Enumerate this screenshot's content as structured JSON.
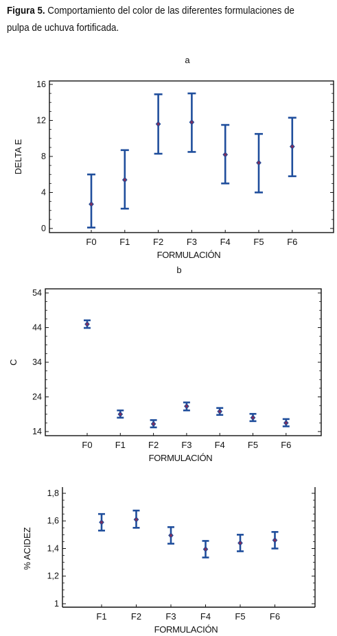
{
  "caption": {
    "label": "Figura 5.",
    "text": "Comportamiento del color de las diferentes formulaciones de pulpa de uchuva fortificada."
  },
  "colors": {
    "series": "#1f4e9c",
    "marker": "#7a2f5f",
    "frame": "#111111"
  },
  "chart_data": [
    {
      "type": "scatter",
      "panel_label": "a",
      "xlabel": "FORMULACIÓN",
      "ylabel": "DELTA E",
      "categories": [
        "F0",
        "F1",
        "F2",
        "F3",
        "F4",
        "F5",
        "F6"
      ],
      "values": [
        2.7,
        5.4,
        11.6,
        11.8,
        8.2,
        7.3,
        9.1
      ],
      "lower": [
        0.1,
        2.2,
        8.3,
        8.5,
        5.0,
        4.0,
        5.8
      ],
      "upper": [
        6.0,
        8.7,
        14.9,
        15.0,
        11.5,
        10.5,
        12.3
      ],
      "ylim": [
        0,
        16
      ],
      "yticks": [
        "0",
        "4",
        "8",
        "12",
        "16"
      ],
      "ytick_values": [
        0,
        4,
        8,
        12,
        16
      ],
      "grid": false
    },
    {
      "type": "scatter",
      "panel_label": "b",
      "xlabel": "FORMULACIÓN",
      "ylabel": "C",
      "categories": [
        "F0",
        "F1",
        "F2",
        "F3",
        "F4",
        "F5",
        "F6"
      ],
      "values": [
        45.0,
        19.0,
        16.2,
        21.3,
        19.8,
        18.0,
        16.5
      ],
      "lower": [
        43.9,
        18.0,
        15.2,
        20.1,
        18.8,
        17.0,
        15.5
      ],
      "upper": [
        46.1,
        20.1,
        17.3,
        22.4,
        20.8,
        19.1,
        17.6
      ],
      "ylim": [
        14,
        54
      ],
      "yticks": [
        "14",
        "24",
        "34",
        "44",
        "54"
      ],
      "ytick_values": [
        14,
        24,
        34,
        44,
        54
      ],
      "grid": false
    },
    {
      "type": "scatter",
      "xlabel": "FORMULACIÓN",
      "ylabel": "% ACIDEZ",
      "categories": [
        "F1",
        "F2",
        "F3",
        "F4",
        "F5",
        "F6"
      ],
      "values": [
        1.59,
        1.61,
        1.495,
        1.395,
        1.44,
        1.46
      ],
      "lower": [
        1.53,
        1.55,
        1.435,
        1.335,
        1.38,
        1.4
      ],
      "upper": [
        1.65,
        1.675,
        1.555,
        1.455,
        1.5,
        1.52
      ],
      "ylim": [
        0.98,
        1.8
      ],
      "yticks": [
        "1",
        "1,2",
        "1,4",
        "1,6",
        "1,8"
      ],
      "ytick_values": [
        1,
        1.2,
        1.4,
        1.6,
        1.8
      ],
      "grid": false
    }
  ]
}
